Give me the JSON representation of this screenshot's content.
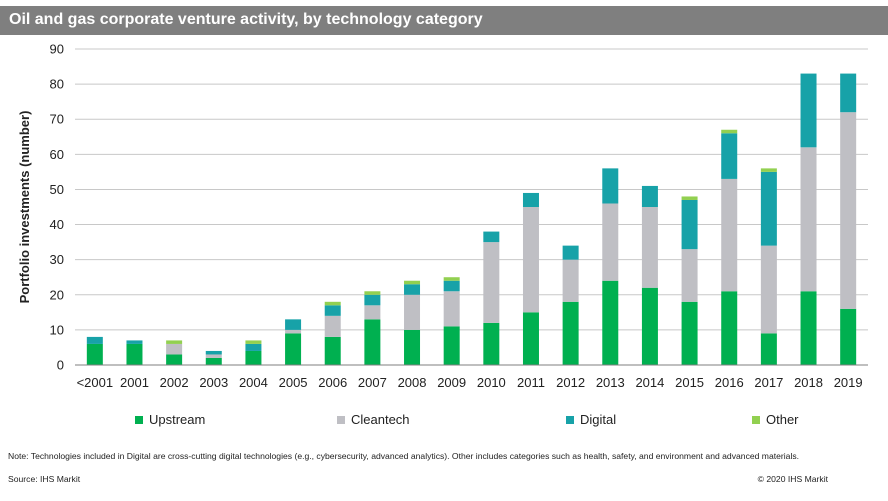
{
  "header": {
    "title": "Oil and gas corporate venture activity, by technology category"
  },
  "colors": {
    "Upstream": "#00b050",
    "Cleantech": "#bfbfc4",
    "Digital": "#17a2a8",
    "Other": "#92d050",
    "grid": "#c8c8c8",
    "header_bg": "#7f7f7f"
  },
  "chart_data": {
    "type": "bar",
    "stacked": true,
    "categories": [
      "<2001",
      "2001",
      "2002",
      "2003",
      "2004",
      "2005",
      "2006",
      "2007",
      "2008",
      "2009",
      "2010",
      "2011",
      "2012",
      "2013",
      "2014",
      "2015",
      "2016",
      "2017",
      "2018",
      "2019"
    ],
    "series": [
      {
        "name": "Upstream",
        "values": [
          6,
          6,
          3,
          2,
          4,
          9,
          8,
          13,
          10,
          11,
          12,
          15,
          18,
          24,
          22,
          18,
          21,
          9,
          21,
          16
        ]
      },
      {
        "name": "Cleantech",
        "values": [
          0,
          0,
          3,
          1,
          0,
          1,
          6,
          4,
          10,
          10,
          23,
          30,
          12,
          22,
          23,
          15,
          32,
          25,
          41,
          56
        ]
      },
      {
        "name": "Digital",
        "values": [
          2,
          1,
          0,
          1,
          2,
          3,
          3,
          3,
          3,
          3,
          3,
          4,
          4,
          10,
          6,
          14,
          13,
          21,
          21,
          11
        ]
      },
      {
        "name": "Other",
        "values": [
          0,
          0,
          1,
          0,
          1,
          0,
          1,
          1,
          1,
          1,
          0,
          0,
          0,
          0,
          0,
          1,
          1,
          1,
          0,
          0
        ]
      }
    ],
    "title": "Oil and gas corporate venture activity, by technology category",
    "xlabel": "",
    "ylabel": "Portfolio investments (number)",
    "ylim": [
      0,
      90
    ],
    "yticks": [
      0,
      10,
      20,
      30,
      40,
      50,
      60,
      70,
      80,
      90
    ],
    "grid": true,
    "legend": "bottom"
  },
  "footer": {
    "note": "Note: Technologies included in Digital are cross-cutting digital technologies (e.g., cybersecurity, advanced analytics). Other includes categories such as health, safety, and environment and advanced materials.",
    "source": "Source: IHS Markit",
    "copyright": "© 2020 IHS Markit"
  }
}
